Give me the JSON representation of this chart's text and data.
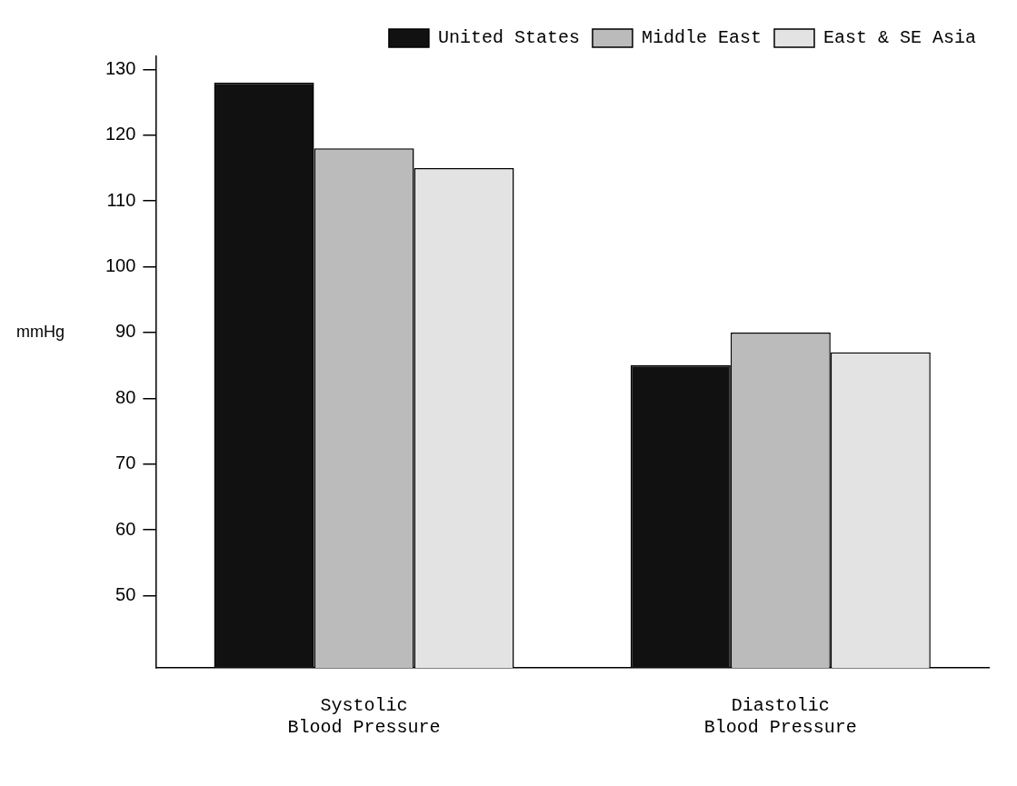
{
  "chart_data": {
    "type": "bar",
    "ylabel": "mmHg",
    "categories": [
      "Systolic Blood Pressure",
      "Diastolic Blood Pressure"
    ],
    "series": [
      {
        "name": "United States",
        "color": "#111111",
        "values": [
          128,
          85
        ]
      },
      {
        "name": "Middle East",
        "color": "#bbbbbb",
        "values": [
          118,
          90
        ]
      },
      {
        "name": "East & SE Asia",
        "color": "#e3e3e3",
        "values": [
          115,
          87
        ]
      }
    ],
    "ylim": [
      39,
      132
    ],
    "yticks": [
      50,
      60,
      70,
      80,
      90,
      100,
      110,
      120,
      130
    ],
    "grid": false,
    "legend": "top right"
  }
}
